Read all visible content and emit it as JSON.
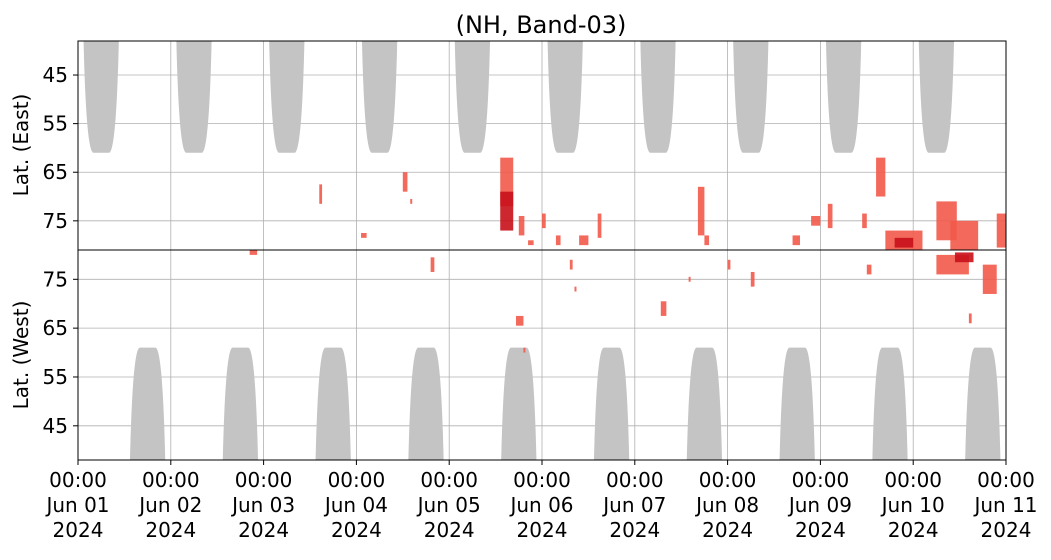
{
  "chart_data": {
    "type": "heatmap",
    "title": "(NH, Band-03)",
    "x_ticks": [
      [
        "00:00",
        "Jun 01",
        "2024"
      ],
      [
        "00:00",
        "Jun 02",
        "2024"
      ],
      [
        "00:00",
        "Jun 03",
        "2024"
      ],
      [
        "00:00",
        "Jun 04",
        "2024"
      ],
      [
        "00:00",
        "Jun 05",
        "2024"
      ],
      [
        "00:00",
        "Jun 06",
        "2024"
      ],
      [
        "00:00",
        "Jun 07",
        "2024"
      ],
      [
        "00:00",
        "Jun 08",
        "2024"
      ],
      [
        "00:00",
        "Jun 09",
        "2024"
      ],
      [
        "00:00",
        "Jun 10",
        "2024"
      ],
      [
        "00:00",
        "Jun 11",
        "2024"
      ]
    ],
    "xlim_days": [
      0,
      10
    ],
    "top_panel": {
      "ylabel": "Lat. (East)",
      "ylim": [
        38,
        81
      ],
      "yticks": [
        "45",
        "55",
        "65",
        "75"
      ],
      "ytick_values": [
        45,
        55,
        65,
        75
      ],
      "inverted": false
    },
    "bottom_panel": {
      "ylabel": "Lat. (West)",
      "ylim": [
        81,
        38
      ],
      "yticks": [
        "75",
        "65",
        "55",
        "45"
      ],
      "ytick_values": [
        75,
        65,
        55,
        45
      ],
      "inverted": true
    },
    "grid": true,
    "colors": {
      "shade": "#c4c4c4",
      "event_light": "#f25a4a",
      "event_dark": "#c8101a"
    },
    "gray_shading_top": [
      {
        "day_center": 0.25,
        "lat_min": 61,
        "half_width_days": 0.19
      },
      {
        "day_center": 1.25,
        "lat_min": 61,
        "half_width_days": 0.19
      },
      {
        "day_center": 2.25,
        "lat_min": 61,
        "half_width_days": 0.19
      },
      {
        "day_center": 3.25,
        "lat_min": 61,
        "half_width_days": 0.19
      },
      {
        "day_center": 4.25,
        "lat_min": 61,
        "half_width_days": 0.19
      },
      {
        "day_center": 5.25,
        "lat_min": 61,
        "half_width_days": 0.19
      },
      {
        "day_center": 6.25,
        "lat_min": 61,
        "half_width_days": 0.19
      },
      {
        "day_center": 7.25,
        "lat_min": 61,
        "half_width_days": 0.19
      },
      {
        "day_center": 8.25,
        "lat_min": 61,
        "half_width_days": 0.19
      },
      {
        "day_center": 9.25,
        "lat_min": 61,
        "half_width_days": 0.19
      }
    ],
    "gray_shading_bottom": [
      {
        "day_center": 0.75,
        "lat_min": 61,
        "half_width_days": 0.19
      },
      {
        "day_center": 1.75,
        "lat_min": 61,
        "half_width_days": 0.19
      },
      {
        "day_center": 2.75,
        "lat_min": 61,
        "half_width_days": 0.19
      },
      {
        "day_center": 3.75,
        "lat_min": 61,
        "half_width_days": 0.19
      },
      {
        "day_center": 4.75,
        "lat_min": 61,
        "half_width_days": 0.19
      },
      {
        "day_center": 5.75,
        "lat_min": 61,
        "half_width_days": 0.19
      },
      {
        "day_center": 6.75,
        "lat_min": 61,
        "half_width_days": 0.19
      },
      {
        "day_center": 7.75,
        "lat_min": 61,
        "half_width_days": 0.19
      },
      {
        "day_center": 8.75,
        "lat_min": 61,
        "half_width_days": 0.19
      },
      {
        "day_center": 9.75,
        "lat_min": 61,
        "half_width_days": 0.19
      }
    ],
    "events_top": [
      {
        "d": 2.6,
        "lat": 69.5,
        "dd": 0.03,
        "dl": 4
      },
      {
        "d": 3.05,
        "lat": 78,
        "dd": 0.06,
        "dl": 1
      },
      {
        "d": 3.5,
        "lat": 67,
        "dd": 0.05,
        "dl": 4
      },
      {
        "d": 3.58,
        "lat": 71,
        "dd": 0.02,
        "dl": 1
      },
      {
        "d": 4.55,
        "lat": 67,
        "dd": 0.14,
        "dl": 10
      },
      {
        "d": 4.55,
        "lat": 73,
        "dd": 0.14,
        "dl": 8,
        "dark": true
      },
      {
        "d": 4.75,
        "lat": 76,
        "dd": 0.06,
        "dl": 4
      },
      {
        "d": 4.85,
        "lat": 79.5,
        "dd": 0.06,
        "dl": 1
      },
      {
        "d": 5.0,
        "lat": 75,
        "dd": 0.04,
        "dl": 3
      },
      {
        "d": 5.15,
        "lat": 79,
        "dd": 0.05,
        "dl": 2
      },
      {
        "d": 5.4,
        "lat": 79,
        "dd": 0.1,
        "dl": 2
      },
      {
        "d": 5.6,
        "lat": 76,
        "dd": 0.04,
        "dl": 5
      },
      {
        "d": 6.68,
        "lat": 73,
        "dd": 0.07,
        "dl": 10
      },
      {
        "d": 6.75,
        "lat": 79,
        "dd": 0.05,
        "dl": 2
      },
      {
        "d": 7.7,
        "lat": 79,
        "dd": 0.08,
        "dl": 2
      },
      {
        "d": 7.9,
        "lat": 75,
        "dd": 0.1,
        "dl": 2
      },
      {
        "d": 8.08,
        "lat": 74,
        "dd": 0.05,
        "dl": 5
      },
      {
        "d": 8.45,
        "lat": 75,
        "dd": 0.05,
        "dl": 3
      },
      {
        "d": 8.6,
        "lat": 66,
        "dd": 0.1,
        "dl": 8
      },
      {
        "d": 8.7,
        "lat": 79,
        "dd": 0.4,
        "dl": 4
      },
      {
        "d": 8.8,
        "lat": 79.5,
        "dd": 0.2,
        "dl": 2,
        "dark": true
      },
      {
        "d": 9.25,
        "lat": 75,
        "dd": 0.22,
        "dl": 8
      },
      {
        "d": 9.4,
        "lat": 78,
        "dd": 0.3,
        "dl": 6
      },
      {
        "d": 9.9,
        "lat": 77,
        "dd": 0.1,
        "dl": 7
      }
    ],
    "events_bottom": [
      {
        "d": 1.85,
        "lat": 80.5,
        "dd": 0.08,
        "dl": 1
      },
      {
        "d": 3.8,
        "lat": 78,
        "dd": 0.04,
        "dl": 3
      },
      {
        "d": 4.72,
        "lat": 66.5,
        "dd": 0.08,
        "dl": 2
      },
      {
        "d": 4.8,
        "lat": 60.5,
        "dd": 0.02,
        "dl": 1
      },
      {
        "d": 5.3,
        "lat": 78,
        "dd": 0.03,
        "dl": 2
      },
      {
        "d": 5.35,
        "lat": 73,
        "dd": 0.02,
        "dl": 1
      },
      {
        "d": 6.28,
        "lat": 69,
        "dd": 0.06,
        "dl": 3
      },
      {
        "d": 6.58,
        "lat": 75,
        "dd": 0.02,
        "dl": 1
      },
      {
        "d": 7.0,
        "lat": 78,
        "dd": 0.03,
        "dl": 2
      },
      {
        "d": 7.25,
        "lat": 75,
        "dd": 0.04,
        "dl": 3
      },
      {
        "d": 8.5,
        "lat": 77,
        "dd": 0.05,
        "dl": 2
      },
      {
        "d": 9.25,
        "lat": 78,
        "dd": 0.35,
        "dl": 4
      },
      {
        "d": 9.45,
        "lat": 79.5,
        "dd": 0.2,
        "dl": 2,
        "dark": true
      },
      {
        "d": 9.75,
        "lat": 75,
        "dd": 0.15,
        "dl": 6
      },
      {
        "d": 9.6,
        "lat": 67,
        "dd": 0.03,
        "dl": 2
      }
    ]
  }
}
